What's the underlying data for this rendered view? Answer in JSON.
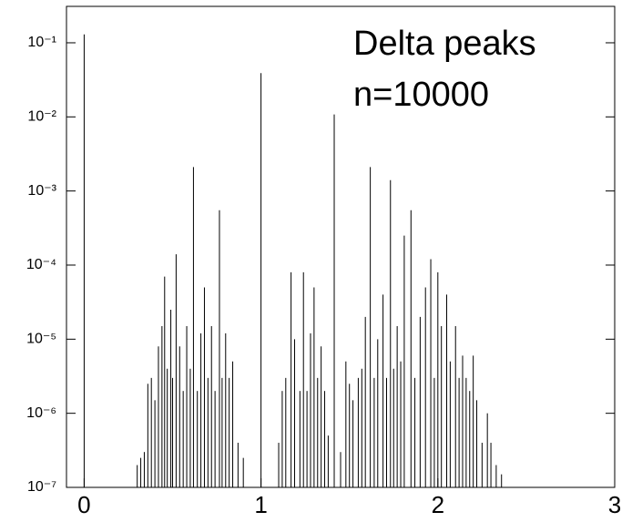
{
  "chart_data": {
    "type": "stem",
    "annotations": [
      "Delta peaks",
      "n=10000"
    ],
    "x": [
      0,
      0.3,
      0.32,
      0.34,
      0.36,
      0.38,
      0.4,
      0.42,
      0.44,
      0.455,
      0.47,
      0.49,
      0.5,
      0.52,
      0.54,
      0.56,
      0.58,
      0.6,
      0.618,
      0.64,
      0.66,
      0.68,
      0.7,
      0.72,
      0.74,
      0.765,
      0.78,
      0.8,
      0.82,
      0.84,
      0.87,
      0.9,
      1.0,
      1.1,
      1.12,
      1.14,
      1.17,
      1.19,
      1.22,
      1.24,
      1.26,
      1.28,
      1.3,
      1.32,
      1.34,
      1.36,
      1.38,
      1.414,
      1.45,
      1.48,
      1.5,
      1.52,
      1.55,
      1.57,
      1.59,
      1.618,
      1.64,
      1.66,
      1.69,
      1.71,
      1.732,
      1.75,
      1.77,
      1.79,
      1.81,
      1.848,
      1.87,
      1.9,
      1.93,
      1.96,
      1.98,
      2.0,
      2.02,
      2.05,
      2.07,
      2.1,
      2.12,
      2.14,
      2.16,
      2.18,
      2.2,
      2.22,
      2.25,
      2.28,
      2.3,
      2.33,
      2.36
    ],
    "values": [
      0.13,
      2e-07,
      2.5e-07,
      3e-07,
      2.5e-06,
      3e-06,
      1.5e-06,
      8e-06,
      1.5e-05,
      7e-05,
      4e-06,
      2.5e-05,
      3e-06,
      0.00014,
      8e-06,
      2e-06,
      1.5e-05,
      4e-06,
      0.0021,
      2e-06,
      1.2e-05,
      5e-05,
      3e-06,
      1.5e-05,
      2e-06,
      0.00055,
      3e-06,
      1.2e-05,
      3e-06,
      5e-06,
      4e-07,
      2.5e-07,
      0.039,
      4e-07,
      2e-06,
      3e-06,
      8e-05,
      1e-05,
      2e-06,
      8e-05,
      2e-06,
      1.2e-05,
      5e-05,
      3e-06,
      8e-06,
      2e-06,
      5e-07,
      0.0108,
      3e-07,
      5e-06,
      2.5e-06,
      1.5e-06,
      3e-06,
      4e-06,
      2e-05,
      0.0021,
      3e-06,
      1e-05,
      4e-05,
      3e-06,
      0.0014,
      4e-06,
      1.5e-05,
      5e-06,
      0.00025,
      0.00055,
      3e-06,
      2e-05,
      5e-05,
      0.00012,
      3e-06,
      8e-05,
      1.5e-05,
      4e-05,
      5e-06,
      1.5e-05,
      3e-06,
      6e-06,
      3e-06,
      2e-06,
      6e-06,
      1.5e-06,
      4e-07,
      1e-06,
      4e-07,
      2e-07,
      1.5e-07
    ],
    "color": "#000000",
    "xlim": [
      -0.1,
      3
    ],
    "xticks": [
      0,
      1,
      2,
      3
    ],
    "ylim": [
      1e-07,
      0.31
    ],
    "ylog": true,
    "yticks": [
      {
        "value": 1e-07,
        "label": "10⁻⁷"
      },
      {
        "value": 1e-06,
        "label": "10⁻⁶"
      },
      {
        "value": 1e-05,
        "label": "10⁻⁵"
      },
      {
        "value": 0.0001,
        "label": "10⁻⁴"
      },
      {
        "value": 0.001,
        "label": "10⁻³"
      },
      {
        "value": 0.01,
        "label": "10⁻²"
      },
      {
        "value": 0.1,
        "label": "10⁻¹"
      }
    ]
  }
}
